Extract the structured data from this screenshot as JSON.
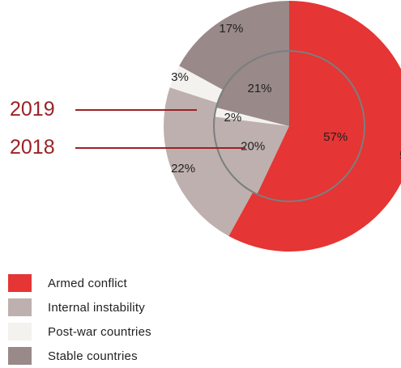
{
  "chart_data": {
    "type": "pie",
    "style": "nested-donut",
    "categories": [
      "Armed conflict",
      "Internal instability",
      "Post-war countries",
      "Stable countries"
    ],
    "series": [
      {
        "name": "2018",
        "values": [
          58,
          22,
          3,
          17
        ],
        "ring": "outer"
      },
      {
        "name": "2019",
        "values": [
          57,
          20,
          2,
          21
        ],
        "ring": "inner"
      }
    ],
    "colors": [
      "#e53534",
      "#bdb0ae",
      "#f4f2ef",
      "#998989"
    ],
    "ring_stroke": "#7a7f7f",
    "year_color": "#9b2226",
    "legend_position": "bottom-left",
    "value_suffix": "%"
  },
  "labels": {
    "year_2019": "2019",
    "year_2018": "2018"
  },
  "legend": [
    {
      "label": "Armed conflict"
    },
    {
      "label": "Internal instability"
    },
    {
      "label": "Post-war countries"
    },
    {
      "label": "Stable countries"
    }
  ]
}
